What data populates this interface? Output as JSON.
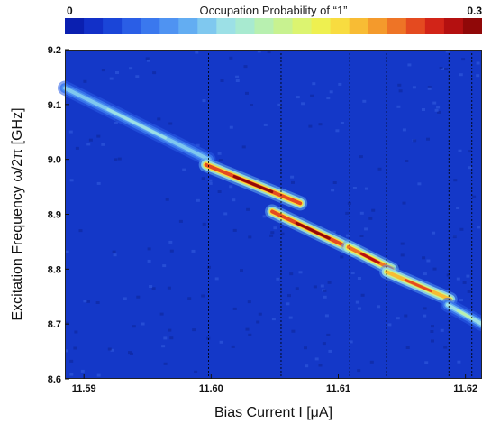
{
  "chart_data": {
    "type": "heatmap",
    "title": "",
    "colorbar": {
      "title": "Occupation Probability of “1”",
      "min_label": "0",
      "max_label": "0.3",
      "range": [
        0,
        0.3
      ],
      "colors": [
        "#0a1fb0",
        "#1230c8",
        "#1a45d8",
        "#2a5ee6",
        "#3a78ee",
        "#4f93f2",
        "#63adf2",
        "#7fc8ef",
        "#9ce0e6",
        "#a8ead0",
        "#b8f0b0",
        "#c8f290",
        "#dcf470",
        "#eef050",
        "#f8dc40",
        "#f8bc34",
        "#f49a2c",
        "#ee7426",
        "#e44a20",
        "#d22418",
        "#b41010",
        "#900808"
      ]
    },
    "background_color": "#1438c8",
    "xlabel": "Bias Current I [μA]",
    "ylabel": "Excitation Frequency ω/2π [GHz]",
    "xlim": [
      11.5885,
      11.6213
    ],
    "ylim": [
      8.6,
      9.2
    ],
    "x_ticks": [
      {
        "value": 11.59,
        "label": "11.59"
      },
      {
        "value": 11.6,
        "label": "11.60"
      },
      {
        "value": 11.61,
        "label": "11.61"
      },
      {
        "value": 11.62,
        "label": "11.62"
      }
    ],
    "y_ticks": [
      {
        "value": 8.6,
        "label": "8.6"
      },
      {
        "value": 8.7,
        "label": "8.7"
      },
      {
        "value": 8.8,
        "label": "8.8"
      },
      {
        "value": 8.9,
        "label": "8.9"
      },
      {
        "value": 9.0,
        "label": "9.0"
      },
      {
        "value": 9.1,
        "label": "9.1"
      },
      {
        "value": 9.2,
        "label": "9.2"
      }
    ],
    "vertical_dashed_lines_x": [
      11.5998,
      11.6055,
      11.6109,
      11.6138,
      11.6187,
      11.6205
    ],
    "band_segments": [
      {
        "x": [
          11.5885,
          11.5998
        ],
        "y": [
          9.13,
          9.0
        ],
        "peak": 0.12
      },
      {
        "x": [
          11.5996,
          11.607
        ],
        "y": [
          8.99,
          8.92
        ],
        "peak": 0.3
      },
      {
        "x": [
          11.6048,
          11.6112
        ],
        "y": [
          8.905,
          8.835
        ],
        "peak": 0.3
      },
      {
        "x": [
          11.6108,
          11.6142
        ],
        "y": [
          8.84,
          8.8
        ],
        "peak": 0.28
      },
      {
        "x": [
          11.6138,
          11.6188
        ],
        "y": [
          8.795,
          8.745
        ],
        "peak": 0.25
      },
      {
        "x": [
          11.6186,
          11.6213
        ],
        "y": [
          8.735,
          8.7
        ],
        "peak": 0.14
      }
    ]
  }
}
